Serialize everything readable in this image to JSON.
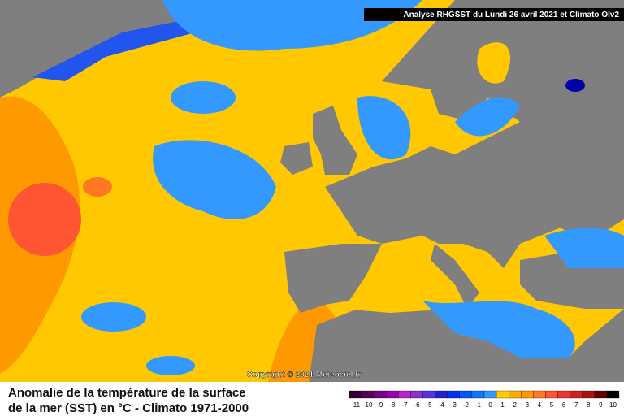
{
  "header": {
    "title": "Analyse RHGSST  du Lundi 26 avril 2021 et Climato OIv2"
  },
  "copyright": "Copyright © 2021 Meteociel.fr",
  "caption": {
    "line1": "Anomalie de la température de la surface",
    "line2": "de la mer (SST) en °C - Climato 1971-2000"
  },
  "legend": {
    "values": [
      -11,
      -10,
      -9,
      -8,
      -7,
      -6,
      -5,
      -4,
      -3,
      -2,
      -1,
      0,
      1,
      2,
      3,
      4,
      5,
      6,
      7,
      8,
      9,
      10
    ],
    "colors": [
      "#330033",
      "#550055",
      "#770088",
      "#9900aa",
      "#bb22cc",
      "#8833cc",
      "#5533dd",
      "#2222cc",
      "#0033ee",
      "#0055ff",
      "#1177ff",
      "#3399ff",
      "#ffcc00",
      "#ffaa00",
      "#ff9900",
      "#ff7722",
      "#ff5533",
      "#ee3333",
      "#cc2222",
      "#aa1111",
      "#660000",
      "#000000"
    ]
  }
}
